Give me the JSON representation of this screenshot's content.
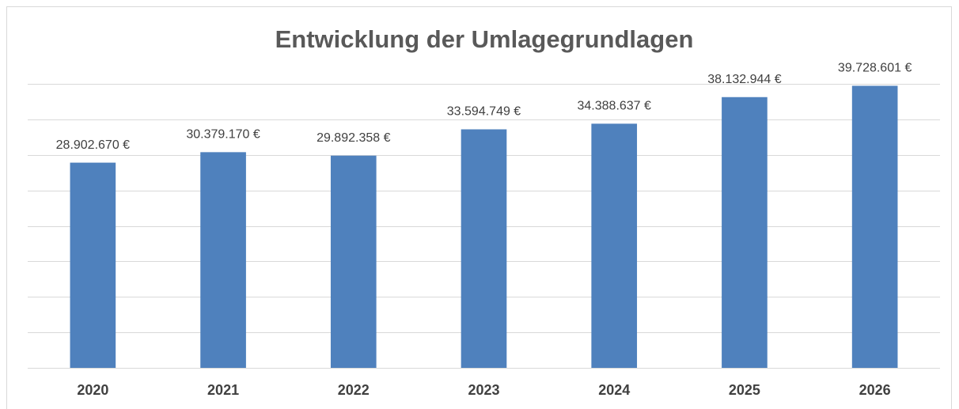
{
  "chart_data": {
    "type": "bar",
    "title": "Entwicklung der Umlagegrundlagen",
    "categories": [
      "2020",
      "2021",
      "2022",
      "2023",
      "2024",
      "2025",
      "2026"
    ],
    "values": [
      28902670,
      30379170,
      29892358,
      33594749,
      34388637,
      38132944,
      39728601
    ],
    "value_labels": [
      "28.902.670 €",
      "30.379.170 €",
      "29.892.358 €",
      "33.594.749 €",
      "34.388.637 €",
      "38.132.944 €",
      "39.728.601 €"
    ],
    "color": "#4f81bd",
    "ylim": [
      0,
      40000000
    ],
    "yticks": [
      0,
      5000000,
      10000000,
      15000000,
      20000000,
      25000000,
      30000000,
      35000000,
      40000000
    ],
    "grid": true
  }
}
